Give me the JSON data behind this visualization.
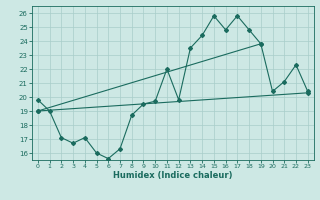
{
  "xlabel": "Humidex (Indice chaleur)",
  "background_color": "#cde8e4",
  "grid_color": "#a8ceca",
  "line_color": "#1a6b5e",
  "xlim": [
    -0.5,
    23.5
  ],
  "ylim": [
    15.5,
    26.5
  ],
  "yticks": [
    16,
    17,
    18,
    19,
    20,
    21,
    22,
    23,
    24,
    25,
    26
  ],
  "xticks": [
    0,
    1,
    2,
    3,
    4,
    5,
    6,
    7,
    8,
    9,
    10,
    11,
    12,
    13,
    14,
    15,
    16,
    17,
    18,
    19,
    20,
    21,
    22,
    23
  ],
  "curve_x": [
    0,
    1,
    2,
    3,
    4,
    5,
    6,
    7,
    8,
    9,
    10,
    11,
    12,
    13,
    14,
    15,
    16,
    17,
    18,
    19,
    20,
    21,
    22,
    23
  ],
  "curve_y": [
    19.8,
    19.0,
    17.1,
    16.7,
    17.1,
    16.0,
    15.6,
    16.3,
    18.7,
    19.5,
    19.7,
    22.0,
    19.8,
    23.5,
    24.4,
    25.8,
    24.8,
    25.8,
    24.8,
    23.8,
    20.4,
    21.1,
    22.3,
    20.4
  ],
  "trend1_x": [
    0,
    19
  ],
  "trend1_y": [
    19.0,
    23.8
  ],
  "trend2_x": [
    0,
    23
  ],
  "trend2_y": [
    19.0,
    20.3
  ],
  "linewidth": 0.8,
  "markersize": 2.0
}
